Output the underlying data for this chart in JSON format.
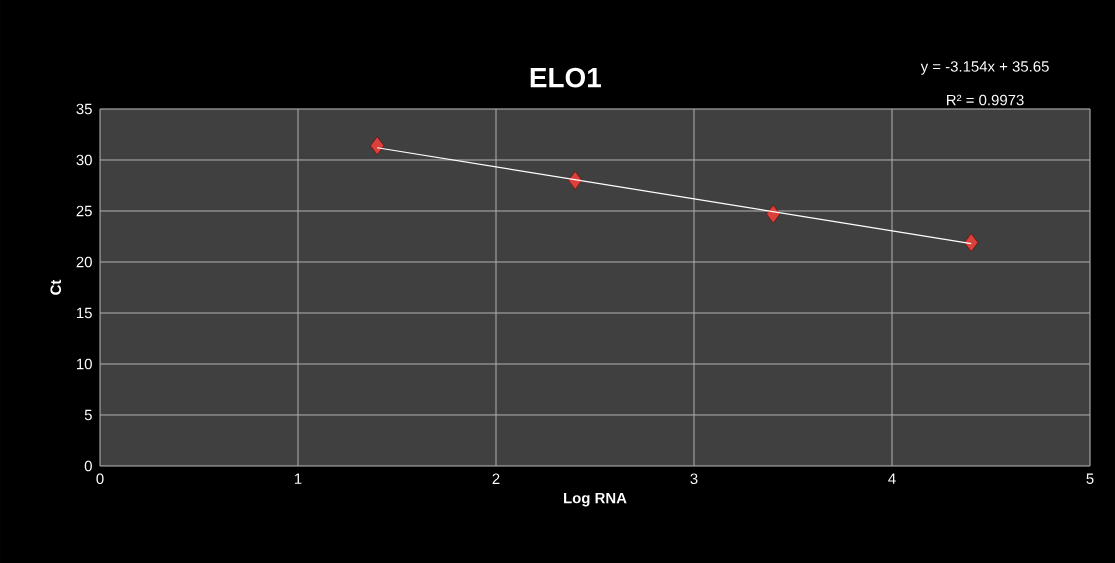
{
  "chart_data": {
    "type": "scatter",
    "title": "ELO1",
    "xlabel": "Log RNA",
    "ylabel": "Ct",
    "xlim": [
      0,
      5
    ],
    "xticks": [
      0,
      1,
      2,
      3,
      4,
      5
    ],
    "ylim": [
      0,
      35
    ],
    "yticks": [
      0,
      5,
      10,
      15,
      20,
      25,
      30,
      35
    ],
    "grid": true,
    "series": [
      {
        "marker": "diamond",
        "color": "#d9413a",
        "x": [
          1.4,
          2.4,
          3.4,
          4.4
        ],
        "values": [
          31.4,
          28.0,
          24.7,
          21.9
        ]
      },
      {
        "type": "line",
        "marker": "none",
        "color": "#ffffff",
        "x": [
          1.4,
          4.4
        ],
        "values": [
          31.2,
          21.8
        ]
      }
    ],
    "annotations": [
      "y = -3.154x + 35.65",
      "R² = 0.9973"
    ]
  }
}
